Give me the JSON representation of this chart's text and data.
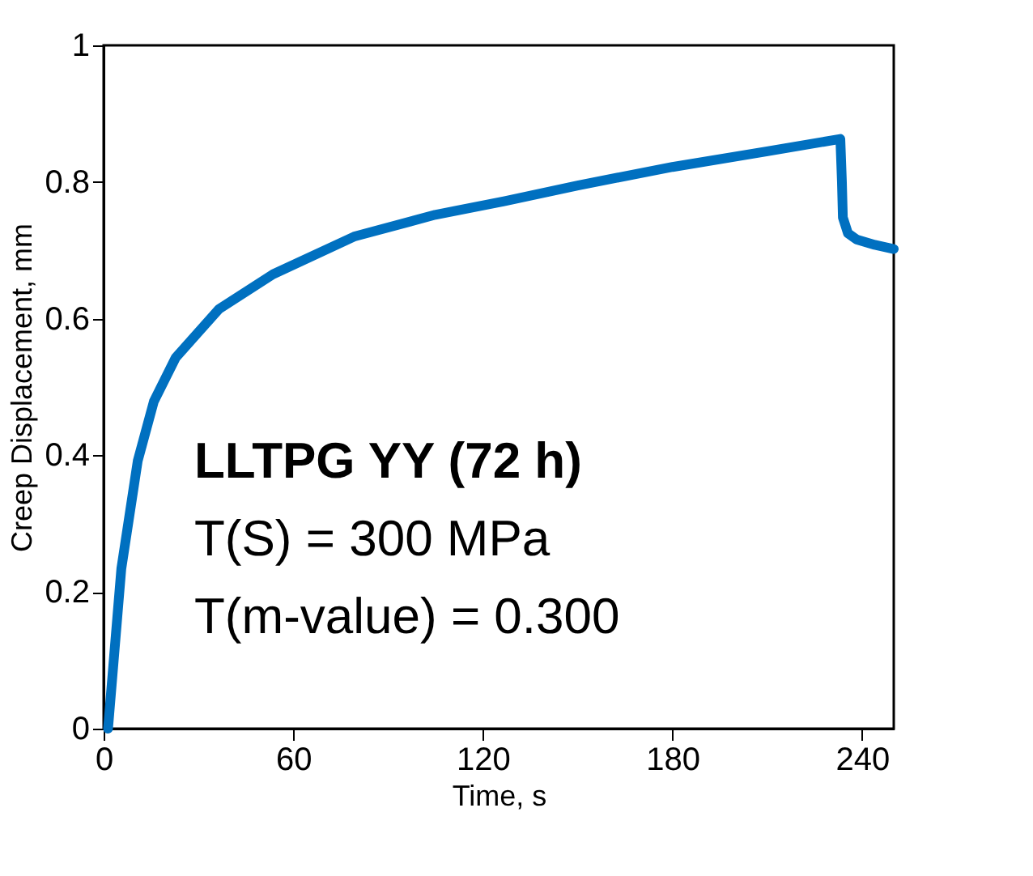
{
  "chart_data": {
    "type": "line",
    "xlabel": "Time, s",
    "ylabel": "Creep Displacement, mm",
    "x": [
      1.4,
      5.6,
      10.8,
      15.9,
      22.8,
      36.5,
      53.6,
      79.2,
      104.9,
      127,
      150,
      180,
      210,
      233.1,
      233.6,
      233.9,
      235.5,
      238.2,
      244,
      250
    ],
    "series": [
      {
        "color": "#0070c0",
        "values": [
          0,
          0.234,
          0.392,
          0.479,
          0.543,
          0.614,
          0.665,
          0.72,
          0.752,
          0.772,
          0.795,
          0.822,
          0.845,
          0.863,
          0.8,
          0.748,
          0.725,
          0.716,
          0.708,
          0.702
        ]
      }
    ],
    "xlim": [
      0,
      250
    ],
    "xticks": [
      0,
      60,
      120,
      180,
      240
    ],
    "ylim": [
      0,
      1
    ],
    "yticks": [
      0,
      0.2,
      0.4,
      0.6,
      0.8,
      1
    ],
    "grid": false,
    "legend": false,
    "marker": "none",
    "line_style": "solid",
    "annotations": [
      "LLTPG YY (72 h)",
      "T(S) = 300 MPa",
      "T(m-value) = 0.300"
    ]
  }
}
